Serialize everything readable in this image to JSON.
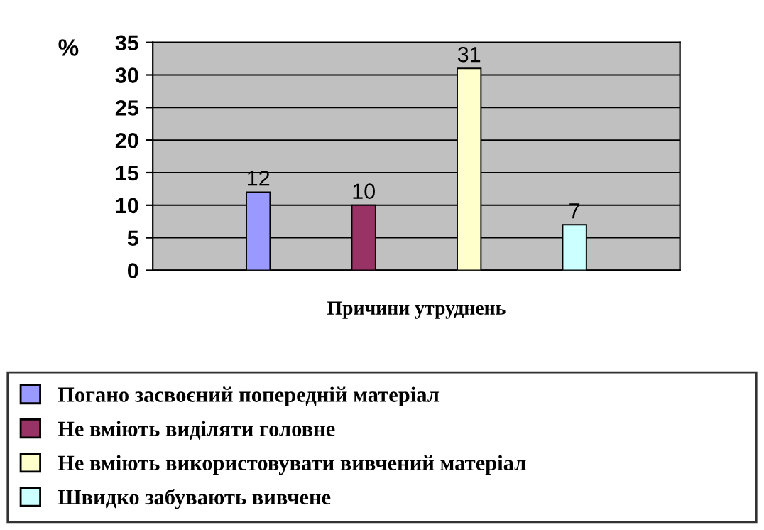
{
  "chart_data": {
    "type": "bar",
    "ylabel": "%",
    "xlabel": "Причини утруднень",
    "categories": [
      null
    ],
    "series": [
      {
        "name": "Погано засвоєний попередній матеріал",
        "color": "#9999ff",
        "values": [
          12
        ]
      },
      {
        "name": "Не вміють виділяти головне",
        "color": "#993366",
        "values": [
          10
        ]
      },
      {
        "name": "Не вміють використовувати вивчений матеріал",
        "color": "#ffffcc",
        "values": [
          31
        ]
      },
      {
        "name": "Швидко забувають вивчене",
        "color": "#ccffff",
        "values": [
          7
        ]
      }
    ],
    "ylim": [
      0,
      35
    ],
    "yticks": [
      0,
      5,
      10,
      15,
      20,
      25,
      30,
      35
    ],
    "grid": "y",
    "legend": "bottom",
    "data_labels": true
  }
}
